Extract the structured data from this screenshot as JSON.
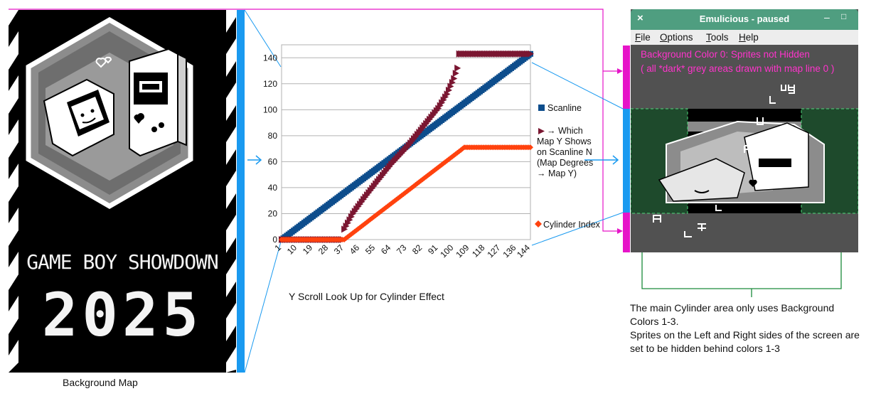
{
  "background_map": {
    "title": "GAME BOY SHOWDOWN",
    "year": "2025",
    "caption": "Background Map"
  },
  "chart_data": {
    "type": "scatter",
    "caption": "Y Scroll Look Up for Cylinder Effect",
    "x_tick_labels": [
      "1",
      "10",
      "19",
      "28",
      "37",
      "46",
      "55",
      "64",
      "73",
      "82",
      "91",
      "100",
      "109",
      "118",
      "127",
      "136",
      "144"
    ],
    "xlim": [
      1,
      144
    ],
    "ylim": [
      0,
      150
    ],
    "y_ticks": [
      0,
      20,
      40,
      60,
      80,
      100,
      120,
      140
    ],
    "grid": true,
    "legend_placement": "right",
    "series": [
      {
        "name": "Scanline",
        "marker": "square",
        "color": "#0d4d8c",
        "points": [
          [
            1,
            0
          ],
          [
            144,
            143
          ]
        ]
      },
      {
        "name": "→ Which Map Y Shows on Scanline N (Map Degrees → Map Y)",
        "marker": "triangle",
        "color": "#7a1631",
        "points": [
          [
            1,
            0
          ],
          [
            36,
            0
          ],
          [
            37,
            8
          ],
          [
            42,
            20
          ],
          [
            48,
            31
          ],
          [
            55,
            43
          ],
          [
            64,
            58
          ],
          [
            73,
            71
          ],
          [
            82,
            86
          ],
          [
            91,
            101
          ],
          [
            96,
            112
          ],
          [
            100,
            124
          ],
          [
            102,
            132
          ],
          [
            103,
            143
          ],
          [
            144,
            143
          ]
        ]
      },
      {
        "name": "Cylinder Index",
        "marker": "diamond",
        "color": "#ff420e",
        "points": [
          [
            1,
            0
          ],
          [
            37,
            0
          ],
          [
            106,
            71
          ],
          [
            144,
            71
          ]
        ]
      }
    ]
  },
  "emulator": {
    "title": "Emulicious - paused",
    "close_glyph": "×",
    "min_glyph": "‒",
    "max_glyph": "□",
    "menu": [
      {
        "u": "F",
        "rest": "ile"
      },
      {
        "u": "O",
        "rest": "ptions"
      },
      {
        "u": "T",
        "rest": "ools"
      },
      {
        "u": "H",
        "rest": "elp"
      }
    ],
    "note_line1": "Background Color 0: Sprites not Hidden",
    "note_line2": "( all *dark* grey areas drawn with map line 0 )"
  },
  "caption_right": {
    "line1": "The main Cylinder area only uses Background Colors 1-3.",
    "line2": "Sprites on the Left and Right sides of the screen are set to be hidden behind colors 1-3"
  },
  "colors": {
    "magenta": "#e614c8",
    "blue_bar": "#1a9af0",
    "green_line": "#1a8a3a",
    "scanline": "#0d4d8c",
    "which": "#7a1631",
    "cylinder": "#ff420e"
  }
}
